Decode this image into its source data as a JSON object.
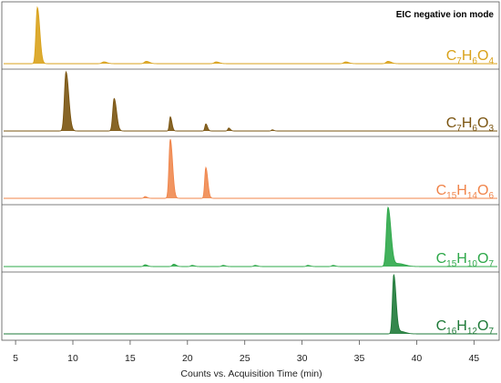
{
  "chart_data": {
    "type": "line",
    "title": "",
    "mode_label": "EIC negative ion mode",
    "xlabel": "Counts vs. Acquisition Time (min)",
    "ylabel": "",
    "xlim": [
      3.8,
      47.2
    ],
    "xticks": [
      5,
      10,
      15,
      20,
      25,
      30,
      35,
      40,
      45
    ],
    "xtick_labels": [
      "5",
      "10",
      "15",
      "20",
      "25",
      "30",
      "35",
      "40",
      "45"
    ],
    "grid": false,
    "legend": "none",
    "series": [
      {
        "formula": [
          "C",
          "7",
          "H",
          "6",
          "O",
          "4"
        ],
        "color": "#D9A21B",
        "fill": "#D9A21B",
        "peaks": [
          {
            "x": 6.9,
            "y": 0.95,
            "w": 0.15
          },
          {
            "x": 12.7,
            "y": 0.03,
            "w": 0.2
          },
          {
            "x": 16.4,
            "y": 0.04,
            "w": 0.2
          },
          {
            "x": 22.5,
            "y": 0.03,
            "w": 0.2
          },
          {
            "x": 33.8,
            "y": 0.03,
            "w": 0.2
          },
          {
            "x": 37.5,
            "y": 0.04,
            "w": 0.2
          }
        ]
      },
      {
        "formula": [
          "C",
          "7",
          "H",
          "6",
          "O",
          "3"
        ],
        "color": "#7A5410",
        "fill": "#7A5410",
        "peaks": [
          {
            "x": 9.4,
            "y": 1.0,
            "w": 0.17
          },
          {
            "x": 13.6,
            "y": 0.55,
            "w": 0.15
          },
          {
            "x": 18.5,
            "y": 0.24,
            "w": 0.1
          },
          {
            "x": 21.6,
            "y": 0.12,
            "w": 0.1
          },
          {
            "x": 23.6,
            "y": 0.05,
            "w": 0.1
          },
          {
            "x": 27.4,
            "y": 0.02,
            "w": 0.1
          }
        ]
      },
      {
        "formula": [
          "C",
          "15",
          "H",
          "14",
          "O",
          "6"
        ],
        "color": "#F0844A",
        "fill": "#F08A50",
        "peaks": [
          {
            "x": 16.3,
            "y": 0.03,
            "w": 0.12
          },
          {
            "x": 18.5,
            "y": 1.0,
            "w": 0.14
          },
          {
            "x": 21.6,
            "y": 0.52,
            "w": 0.12
          }
        ]
      },
      {
        "formula": [
          "C",
          "15",
          "H",
          "10",
          "O",
          "7"
        ],
        "color": "#2EA84A",
        "fill": "#2EA84A",
        "peaks": [
          {
            "x": 16.3,
            "y": 0.03,
            "w": 0.15
          },
          {
            "x": 18.8,
            "y": 0.04,
            "w": 0.15
          },
          {
            "x": 20.4,
            "y": 0.02,
            "w": 0.15
          },
          {
            "x": 23.1,
            "y": 0.02,
            "w": 0.15
          },
          {
            "x": 25.9,
            "y": 0.02,
            "w": 0.15
          },
          {
            "x": 30.5,
            "y": 0.02,
            "w": 0.15
          },
          {
            "x": 32.7,
            "y": 0.02,
            "w": 0.15
          },
          {
            "x": 37.5,
            "y": 1.0,
            "w": 0.18
          },
          {
            "x": 38.4,
            "y": 0.05,
            "w": 0.4
          }
        ]
      },
      {
        "formula": [
          "C",
          "16",
          "H",
          "12",
          "O",
          "7"
        ],
        "color": "#1E7A38",
        "fill": "#1E7A38",
        "peaks": [
          {
            "x": 38.0,
            "y": 1.0,
            "w": 0.14
          },
          {
            "x": 38.6,
            "y": 0.04,
            "w": 0.3
          }
        ]
      }
    ]
  }
}
